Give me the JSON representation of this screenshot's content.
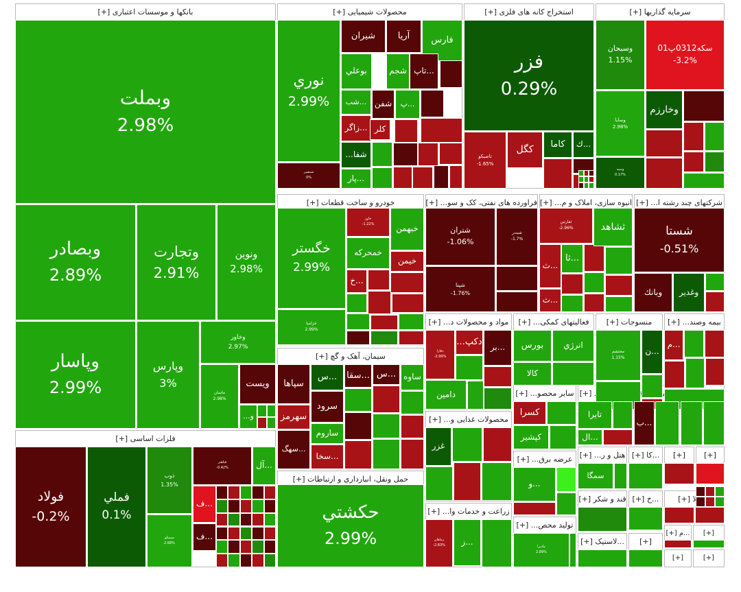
{
  "colors": {
    "gain_strong": "#22a60d",
    "gain_mid": "#1f8a0c",
    "gain_dark": "#0d5a05",
    "loss_strong": "#e0141e",
    "loss_mid": "#a81317",
    "loss_dark": "#560606",
    "neutral": "#6e1010",
    "bright": "#3df01b"
  },
  "chart_data": {
    "type": "heatmap",
    "title": "",
    "sectors": [
      {
        "id": "banks",
        "title": "بانکها و موسسات اعتباری [+]",
        "tiles": [
          {
            "name": "وبملت",
            "change": "2.98%"
          },
          {
            "name": "وبصادر",
            "change": "2.89%"
          },
          {
            "name": "وتجارت",
            "change": "2.91%"
          },
          {
            "name": "ونوین",
            "change": "2.98%"
          },
          {
            "name": "وپاسار",
            "change": "2.99%"
          },
          {
            "name": "وپارس",
            "change": "3%"
          },
          {
            "name": "وخاور",
            "change": "2.97%"
          },
          {
            "name": "ماسان",
            "change": "2.98%"
          },
          {
            "name": "ویست",
            "change": ""
          },
          {
            "name": "و...",
            "change": ""
          }
        ]
      },
      {
        "id": "chem",
        "title": "محصولات شیمیایی [+]",
        "tiles": [
          {
            "name": "نوري",
            "change": "2.99%"
          },
          {
            "name": "فارس",
            "change": ""
          },
          {
            "name": "آريا",
            "change": ""
          },
          {
            "name": "شيران",
            "change": ""
          },
          {
            "name": "شجم",
            "change": ""
          },
          {
            "name": "بوعلي",
            "change": ""
          },
          {
            "name": "...تاپ",
            "change": ""
          },
          {
            "name": "شفن",
            "change": ""
          },
          {
            "name": "...پ",
            "change": ""
          },
          {
            "name": "...شب",
            "change": ""
          },
          {
            "name": "...زاگر",
            "change": ""
          },
          {
            "name": "كلر",
            "change": ""
          },
          {
            "name": "شفا...",
            "change": ""
          },
          {
            "name": "...پار",
            "change": ""
          },
          {
            "name": "شبصير",
            "change": "0%"
          }
        ]
      },
      {
        "id": "metalmine",
        "title": "استخراج کانه های فلزی [+]",
        "tiles": [
          {
            "name": "فزر",
            "change": "0.29%"
          },
          {
            "name": "تاصيكو",
            "change": "-1.65%"
          },
          {
            "name": "كگل",
            "change": ""
          },
          {
            "name": "كاما",
            "change": ""
          },
          {
            "name": "...ك",
            "change": ""
          }
        ]
      },
      {
        "id": "invest",
        "title": "سرمایه گذاریها [+]",
        "tiles": [
          {
            "name": "وسبحان",
            "change": "1.15%"
          },
          {
            "name": "سكه0312پ01",
            "change": "-3.2%"
          },
          {
            "name": "وخارزم",
            "change": ""
          },
          {
            "name": "وسايا",
            "change": "2.98%"
          },
          {
            "name": "وسپه",
            "change": "0.17%"
          }
        ]
      },
      {
        "id": "auto",
        "title": "خودرو و ساخت قطعات [+]",
        "tiles": [
          {
            "name": "خگستر",
            "change": "2.99%"
          },
          {
            "name": "خاور",
            "change": "-1.22%"
          },
          {
            "name": "خبهمن",
            "change": ""
          },
          {
            "name": "خمحركه",
            "change": ""
          },
          {
            "name": "خيمن",
            "change": ""
          },
          {
            "name": "...خ",
            "change": ""
          },
          {
            "name": "خزاميا",
            "change": "2.99%"
          }
        ]
      },
      {
        "id": "oil",
        "title": "فراورده های نفتی، کک و سو... [+]",
        "tiles": [
          {
            "name": "شتران",
            "change": "-1.06%"
          },
          {
            "name": "شبندر",
            "change": "-1.7%"
          },
          {
            "name": "شپنا",
            "change": "-1.76%"
          }
        ]
      },
      {
        "id": "realestate",
        "title": "انبوه سازی، املاک و م... [+]",
        "tiles": [
          {
            "name": "ثاباد",
            "change": ""
          },
          {
            "name": "ثشاهد",
            "change": ""
          },
          {
            "name": "ثفارس",
            "change": "-2.96%"
          },
          {
            "name": "...ثا",
            "change": ""
          },
          {
            "name": "...ث",
            "change": ""
          },
          {
            "name": "...ث",
            "change": ""
          }
        ]
      },
      {
        "id": "multi",
        "title": "شرکتهای چند رشته ا... [+]",
        "tiles": [
          {
            "name": "شستا",
            "change": "-0.51%"
          },
          {
            "name": "وبانك",
            "change": ""
          },
          {
            "name": "وغدير",
            "change": ""
          }
        ]
      },
      {
        "id": "cement",
        "title": "سیمان، آهک و گچ [+]",
        "tiles": [
          {
            "name": "سپاها",
            "change": ""
          },
          {
            "name": "سهرمز",
            "change": ""
          },
          {
            "name": "...سهگ",
            "change": ""
          },
          {
            "name": "...س",
            "change": ""
          },
          {
            "name": "...سقا",
            "change": ""
          },
          {
            "name": "...س",
            "change": ""
          },
          {
            "name": "ساوه",
            "change": ""
          },
          {
            "name": "سرود",
            "change": ""
          },
          {
            "name": "ساروم",
            "change": ""
          },
          {
            "name": "...سخا",
            "change": ""
          }
        ]
      },
      {
        "id": "material",
        "title": "مواد و محصولات د... [+]",
        "tiles": [
          {
            "name": "دكپ...",
            "change": ""
          },
          {
            "name": "...بر",
            "change": ""
          },
          {
            "name": "دفارا",
            "change": "-2.99%"
          },
          {
            "name": "دامين",
            "change": ""
          }
        ]
      },
      {
        "id": "support",
        "title": "فعالیتهای کمکی... [+]",
        "tiles": [
          {
            "name": "بورس",
            "change": ""
          },
          {
            "name": "انرژي",
            "change": ""
          },
          {
            "name": "كالا",
            "change": ""
          }
        ]
      },
      {
        "id": "textile",
        "title": "منسوجات [+]",
        "tiles": [
          {
            "name": "محتشم",
            "change": "1.15%"
          },
          {
            "name": "...ن",
            "change": ""
          }
        ]
      },
      {
        "id": "insurance",
        "title": "بیمه وصند... [+]",
        "tiles": [
          {
            "name": "...م",
            "change": ""
          }
        ]
      },
      {
        "id": "basemetal",
        "title": "فلزات اساسی [+]",
        "tiles": [
          {
            "name": "فولاد",
            "change": "-0.2%"
          },
          {
            "name": "فملي",
            "change": "0.1%"
          },
          {
            "name": "ذوب",
            "change": "1.35%"
          },
          {
            "name": "فباهنر",
            "change": "-0.42%"
          },
          {
            "name": "...آل",
            "change": ""
          },
          {
            "name": "...ف",
            "change": ""
          },
          {
            "name": "...ف",
            "change": ""
          },
          {
            "name": "سيمكو",
            "change": "2.68%"
          }
        ]
      },
      {
        "id": "transport",
        "title": "حمل ونقل، انبارداري و ارتباطات [+]",
        "tiles": [
          {
            "name": "حكشتي",
            "change": "2.99%"
          }
        ]
      },
      {
        "id": "food",
        "title": "محصولات غذایی و... [+]",
        "tiles": [
          {
            "name": "غزر",
            "change": ""
          }
        ]
      },
      {
        "id": "agri",
        "title": "زراعت و خدمات وا... [+]",
        "tiles": [
          {
            "name": "زماهان",
            "change": "-2.83%"
          },
          {
            "name": "...ز",
            "change": ""
          }
        ]
      },
      {
        "id": "other",
        "title": "سایر محصو... [+]",
        "tiles": [
          {
            "name": "كسرا",
            "change": ""
          },
          {
            "name": "كپشير",
            "change": ""
          }
        ]
      },
      {
        "id": "machine1",
        "title": "ماشین آلا... [+]",
        "tiles": [
          {
            "name": "تايرا",
            "change": ""
          },
          {
            "name": "...ال",
            "change": ""
          }
        ]
      },
      {
        "id": "machine2",
        "title": "ماشین... [+]",
        "tiles": [
          {
            "name": "...ب",
            "change": ""
          }
        ]
      },
      {
        "id": "computer",
        "title": "رایانه... [+]",
        "tiles": []
      },
      {
        "id": "power",
        "title": "عرضه برق... [+]",
        "tiles": [
          {
            "name": "...و",
            "change": ""
          }
        ]
      },
      {
        "id": "hotel",
        "title": "هتل و ر... [+]",
        "tiles": [
          {
            "name": "سمگا",
            "change": ""
          }
        ]
      },
      {
        "id": "ka",
        "title": "...كا [+]",
        "tiles": []
      },
      {
        "id": "sugar",
        "title": "قند و شکر [+]",
        "tiles": []
      },
      {
        "id": "kh",
        "title": "...خ [+]",
        "tiles": []
      },
      {
        "id": "sla",
        "title": "...سلا [+]",
        "tiles": []
      },
      {
        "id": "tolid",
        "title": "تولید محص... [+]",
        "tiles": [
          {
            "name": "ماديرا",
            "change": "2.89%"
          }
        ]
      },
      {
        "id": "plastic",
        "title": "...لاستیک [+]",
        "tiles": []
      },
      {
        "id": "m2",
        "title": "...م [+]",
        "tiles": []
      },
      {
        "id": "s1",
        "title": "[+]",
        "tiles": []
      },
      {
        "id": "s2",
        "title": "[+]",
        "tiles": []
      },
      {
        "id": "s3",
        "title": "[+]",
        "tiles": []
      },
      {
        "id": "s4",
        "title": "[+]",
        "tiles": []
      },
      {
        "id": "s5",
        "title": "[+]",
        "tiles": []
      },
      {
        "id": "s6",
        "title": "[+]",
        "tiles": []
      },
      {
        "id": "s7",
        "title": "[+]",
        "tiles": []
      }
    ]
  }
}
